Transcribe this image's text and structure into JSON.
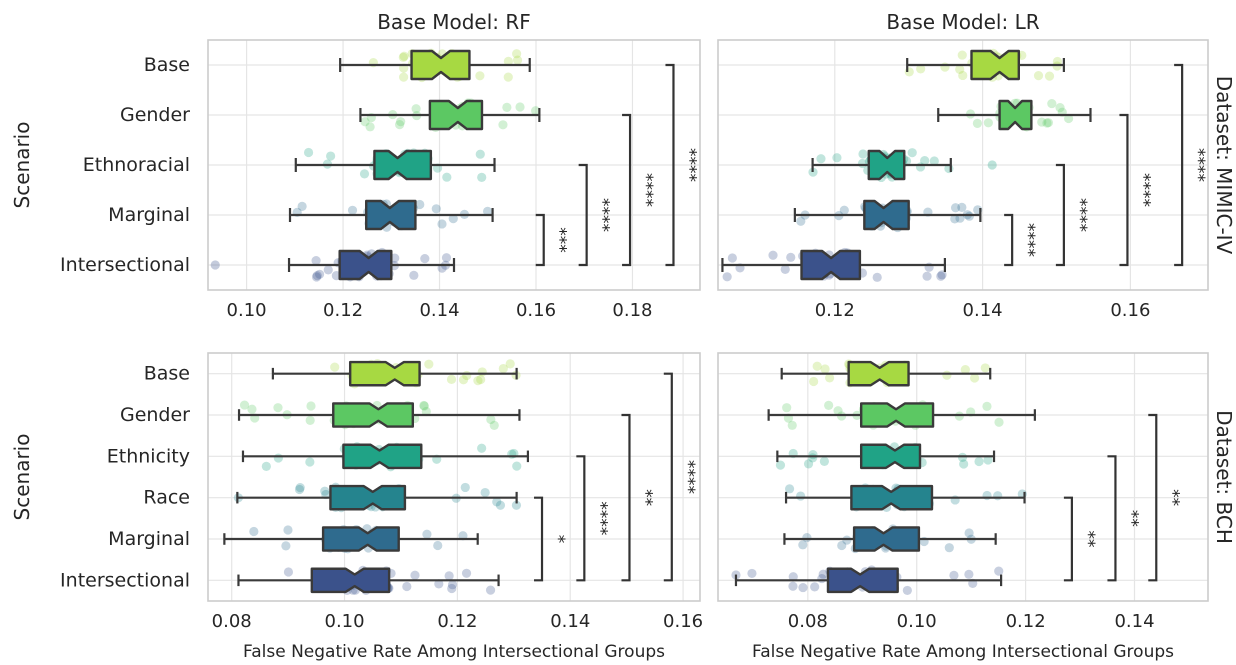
{
  "chart_data": {
    "type": "box",
    "shared_xlabel": "False Negative Rate Among Intersectional Groups",
    "ylabel": "Scenario",
    "colors": {
      "Base": "#a7d942",
      "Gender": "#5cc863",
      "Ethnoracial": "#20a386",
      "Ethnicity": "#20a386",
      "Race": "#25848e",
      "Marginal": "#2f6b8e",
      "Intersectional": "#3b528b",
      "grid": "#e5e5e5",
      "frame": "#cccccc",
      "bracket": "#333333"
    },
    "panels": [
      {
        "id": "rf-mimic",
        "title": "Base Model: RF",
        "dataset_label": "",
        "xlim": [
          0.092,
          0.194
        ],
        "xticks": [
          0.1,
          0.12,
          0.14,
          0.16,
          0.18
        ],
        "xtick_labels": [
          "0.10",
          "0.12",
          "0.14",
          "0.16",
          "0.18"
        ],
        "categories": [
          "Base",
          "Gender",
          "Ethnoracial",
          "Marginal",
          "Intersectional"
        ],
        "boxes": [
          {
            "name": "Base",
            "whislo": 0.1194,
            "q1": 0.1342,
            "med": 0.1403,
            "q3": 0.1462,
            "whishi": 0.1587,
            "n": 38,
            "spread": 0.0095
          },
          {
            "name": "Gender",
            "whislo": 0.1236,
            "q1": 0.138,
            "med": 0.1438,
            "q3": 0.1488,
            "whishi": 0.1607,
            "n": 38,
            "spread": 0.0095
          },
          {
            "name": "Ethnoracial",
            "whislo": 0.1102,
            "q1": 0.1265,
            "med": 0.1313,
            "q3": 0.1382,
            "whishi": 0.1514,
            "n": 38,
            "spread": 0.0095
          },
          {
            "name": "Marginal",
            "whislo": 0.109,
            "q1": 0.1248,
            "med": 0.1297,
            "q3": 0.135,
            "whishi": 0.151,
            "n": 38,
            "spread": 0.0095
          },
          {
            "name": "Intersectional",
            "whislo": 0.1088,
            "q1": 0.1193,
            "med": 0.1253,
            "q3": 0.13,
            "whishi": 0.143,
            "n": 38,
            "spread": 0.0095
          }
        ],
        "outliers": [
          {
            "category": "Intersectional",
            "value": 0.0935
          }
        ],
        "brackets": [
          {
            "from": "Marginal",
            "to": "Intersectional",
            "x": 0.1616,
            "label": "***"
          },
          {
            "from": "Ethnoracial",
            "to": "Intersectional",
            "x": 0.1705,
            "label": "****"
          },
          {
            "from": "Gender",
            "to": "Intersectional",
            "x": 0.1795,
            "label": "****"
          },
          {
            "from": "Base",
            "to": "Intersectional",
            "x": 0.1885,
            "label": "****"
          }
        ]
      },
      {
        "id": "lr-mimic",
        "title": "Base Model: LR",
        "dataset_label": "Dataset: MIMIC-IV",
        "xlim": [
          0.1042,
          0.1705
        ],
        "xticks": [
          0.12,
          0.14,
          0.16
        ],
        "xtick_labels": [
          "0.12",
          "0.14",
          "0.16"
        ],
        "categories": [
          "Base",
          "Gender",
          "Ethnoracial",
          "Marginal",
          "Intersectional"
        ],
        "boxes": [
          {
            "name": "Base",
            "whislo": 0.1298,
            "q1": 0.1385,
            "med": 0.1423,
            "q3": 0.1449,
            "whishi": 0.151,
            "n": 38,
            "spread": 0.0062
          },
          {
            "name": "Gender",
            "whislo": 0.134,
            "q1": 0.1423,
            "med": 0.1444,
            "q3": 0.1466,
            "whishi": 0.1546,
            "n": 38,
            "spread": 0.0062
          },
          {
            "name": "Ethnoracial",
            "whislo": 0.117,
            "q1": 0.1246,
            "med": 0.1271,
            "q3": 0.1294,
            "whishi": 0.1357,
            "n": 38,
            "spread": 0.0062
          },
          {
            "name": "Marginal",
            "whislo": 0.1146,
            "q1": 0.124,
            "med": 0.1266,
            "q3": 0.13,
            "whishi": 0.1397,
            "n": 38,
            "spread": 0.0062
          },
          {
            "name": "Intersectional",
            "whislo": 0.1048,
            "q1": 0.1155,
            "med": 0.1195,
            "q3": 0.1234,
            "whishi": 0.1349,
            "n": 38,
            "spread": 0.0062
          }
        ],
        "outliers": [
          {
            "category": "Ethnoracial",
            "value": 0.1413
          }
        ],
        "brackets": [
          {
            "from": "Marginal",
            "to": "Intersectional",
            "x": 0.144,
            "label": "****"
          },
          {
            "from": "Ethnoracial",
            "to": "Intersectional",
            "x": 0.151,
            "label": "****"
          },
          {
            "from": "Gender",
            "to": "Intersectional",
            "x": 0.1596,
            "label": "****"
          },
          {
            "from": "Base",
            "to": "Intersectional",
            "x": 0.167,
            "label": "****"
          }
        ]
      },
      {
        "id": "rf-bch",
        "title": "",
        "dataset_label": "",
        "xlim": [
          0.0758,
          0.163
        ],
        "xticks": [
          0.08,
          0.1,
          0.12,
          0.14,
          0.16
        ],
        "xtick_labels": [
          "0.08",
          "0.10",
          "0.12",
          "0.14",
          "0.16"
        ],
        "xlabel": "False Negative Rate Among Intersectional Groups",
        "categories": [
          "Base",
          "Gender",
          "Ethnicity",
          "Race",
          "Marginal",
          "Intersectional"
        ],
        "boxes": [
          {
            "name": "Base",
            "whislo": 0.0873,
            "q1": 0.101,
            "med": 0.1089,
            "q3": 0.1133,
            "whishi": 0.1305,
            "n": 38,
            "spread": 0.0105
          },
          {
            "name": "Gender",
            "whislo": 0.0813,
            "q1": 0.098,
            "med": 0.106,
            "q3": 0.1121,
            "whishi": 0.131,
            "n": 38,
            "spread": 0.0105
          },
          {
            "name": "Ethnicity",
            "whislo": 0.082,
            "q1": 0.0998,
            "med": 0.1062,
            "q3": 0.1136,
            "whishi": 0.1325,
            "n": 38,
            "spread": 0.0105
          },
          {
            "name": "Race",
            "whislo": 0.081,
            "q1": 0.0975,
            "med": 0.105,
            "q3": 0.1107,
            "whishi": 0.1305,
            "n": 38,
            "spread": 0.0105
          },
          {
            "name": "Marginal",
            "whislo": 0.0787,
            "q1": 0.0962,
            "med": 0.1041,
            "q3": 0.1096,
            "whishi": 0.1236,
            "n": 38,
            "spread": 0.0105
          },
          {
            "name": "Intersectional",
            "whislo": 0.0812,
            "q1": 0.0942,
            "med": 0.1018,
            "q3": 0.1079,
            "whishi": 0.1273,
            "n": 38,
            "spread": 0.0105
          }
        ],
        "outliers": [],
        "brackets": [
          {
            "from": "Race",
            "to": "Intersectional",
            "x": 0.135,
            "label": "*"
          },
          {
            "from": "Ethnicity",
            "to": "Intersectional",
            "x": 0.1425,
            "label": "****"
          },
          {
            "from": "Gender",
            "to": "Intersectional",
            "x": 0.1505,
            "label": "**"
          },
          {
            "from": "Base",
            "to": "Intersectional",
            "x": 0.158,
            "label": "****"
          }
        ]
      },
      {
        "id": "lr-bch",
        "title": "",
        "dataset_label": "Dataset: BCH",
        "xlim": [
          0.0635,
          0.1535
        ],
        "xticks": [
          0.08,
          0.1,
          0.12,
          0.14
        ],
        "xtick_labels": [
          "0.08",
          "0.10",
          "0.12",
          "0.14"
        ],
        "xlabel": "False Negative Rate Among Intersectional Groups",
        "categories": [
          "Base",
          "Gender",
          "Ethnicity",
          "Race",
          "Marginal",
          "Intersectional"
        ],
        "boxes": [
          {
            "name": "Base",
            "whislo": 0.0752,
            "q1": 0.0875,
            "med": 0.0932,
            "q3": 0.0985,
            "whishi": 0.1135,
            "n": 38,
            "spread": 0.0105
          },
          {
            "name": "Gender",
            "whislo": 0.0728,
            "q1": 0.0898,
            "med": 0.0962,
            "q3": 0.103,
            "whishi": 0.1217,
            "n": 38,
            "spread": 0.0105
          },
          {
            "name": "Ethnicity",
            "whislo": 0.0744,
            "q1": 0.0898,
            "med": 0.096,
            "q3": 0.1006,
            "whishi": 0.1142,
            "n": 38,
            "spread": 0.0105
          },
          {
            "name": "Race",
            "whislo": 0.076,
            "q1": 0.088,
            "med": 0.0953,
            "q3": 0.1028,
            "whishi": 0.1198,
            "n": 38,
            "spread": 0.0105
          },
          {
            "name": "Marginal",
            "whislo": 0.0757,
            "q1": 0.0885,
            "med": 0.0939,
            "q3": 0.1004,
            "whishi": 0.1145,
            "n": 38,
            "spread": 0.0105
          },
          {
            "name": "Intersectional",
            "whislo": 0.0668,
            "q1": 0.0837,
            "med": 0.0896,
            "q3": 0.0965,
            "whishi": 0.1155,
            "n": 38,
            "spread": 0.0105
          }
        ],
        "outliers": [],
        "brackets": [
          {
            "from": "Race",
            "to": "Intersectional",
            "x": 0.1285,
            "label": "**"
          },
          {
            "from": "Ethnicity",
            "to": "Intersectional",
            "x": 0.1365,
            "label": "**"
          },
          {
            "from": "Gender",
            "to": "Intersectional",
            "x": 0.144,
            "label": "**"
          }
        ]
      }
    ]
  }
}
